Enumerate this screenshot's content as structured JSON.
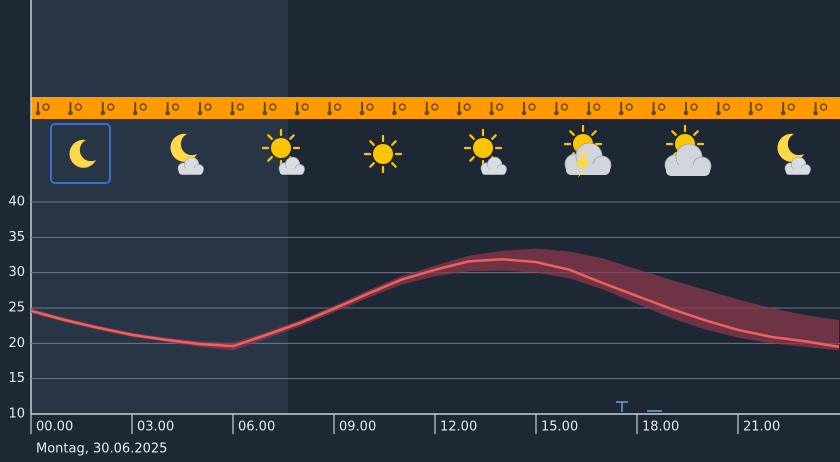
{
  "chart_data": {
    "type": "line",
    "date_label": "Montag, 30.06.2025",
    "x": [
      0,
      1,
      2,
      3,
      4,
      5,
      6,
      7,
      8,
      9,
      10,
      11,
      12,
      13,
      14,
      15,
      16,
      17,
      18,
      19,
      20,
      21,
      22,
      23,
      24
    ],
    "xlim": [
      0,
      24
    ],
    "xticks": [
      {
        "value": 0,
        "label": "00.00"
      },
      {
        "value": 3,
        "label": "03.00"
      },
      {
        "value": 6,
        "label": "06.00"
      },
      {
        "value": 9,
        "label": "09.00"
      },
      {
        "value": 12,
        "label": "12.00"
      },
      {
        "value": 15,
        "label": "15.00"
      },
      {
        "value": 18,
        "label": "18.00"
      },
      {
        "value": 21,
        "label": "21.00"
      }
    ],
    "ylim": [
      10,
      40
    ],
    "yticks": [
      10,
      15,
      20,
      25,
      30,
      35,
      40
    ],
    "grid": true,
    "series": [
      {
        "color": "#f0605e",
        "values": [
          24.6,
          23.3,
          22.2,
          21.2,
          20.5,
          19.9,
          19.6,
          21.2,
          22.9,
          24.9,
          27.0,
          29.0,
          30.4,
          31.6,
          31.9,
          31.5,
          30.4,
          28.5,
          26.7,
          24.9,
          23.3,
          21.9,
          20.9,
          20.3,
          19.5
        ]
      }
    ],
    "band": {
      "color": "#8a3a4c",
      "high": [
        24.9,
        23.6,
        22.5,
        21.5,
        20.8,
        20.3,
        20.1,
        21.6,
        23.3,
        25.3,
        27.5,
        29.5,
        31.0,
        32.4,
        33.1,
        33.4,
        33.0,
        32.0,
        30.5,
        29.0,
        27.6,
        26.2,
        25.0,
        24.0,
        23.3
      ],
      "low": [
        24.3,
        23.0,
        21.9,
        20.9,
        20.2,
        19.5,
        19.0,
        20.7,
        22.4,
        24.4,
        26.4,
        28.3,
        29.5,
        30.2,
        30.3,
        30.0,
        29.2,
        27.6,
        25.6,
        23.6,
        22.0,
        20.8,
        20.0,
        19.5,
        19.0
      ]
    }
  }
}
